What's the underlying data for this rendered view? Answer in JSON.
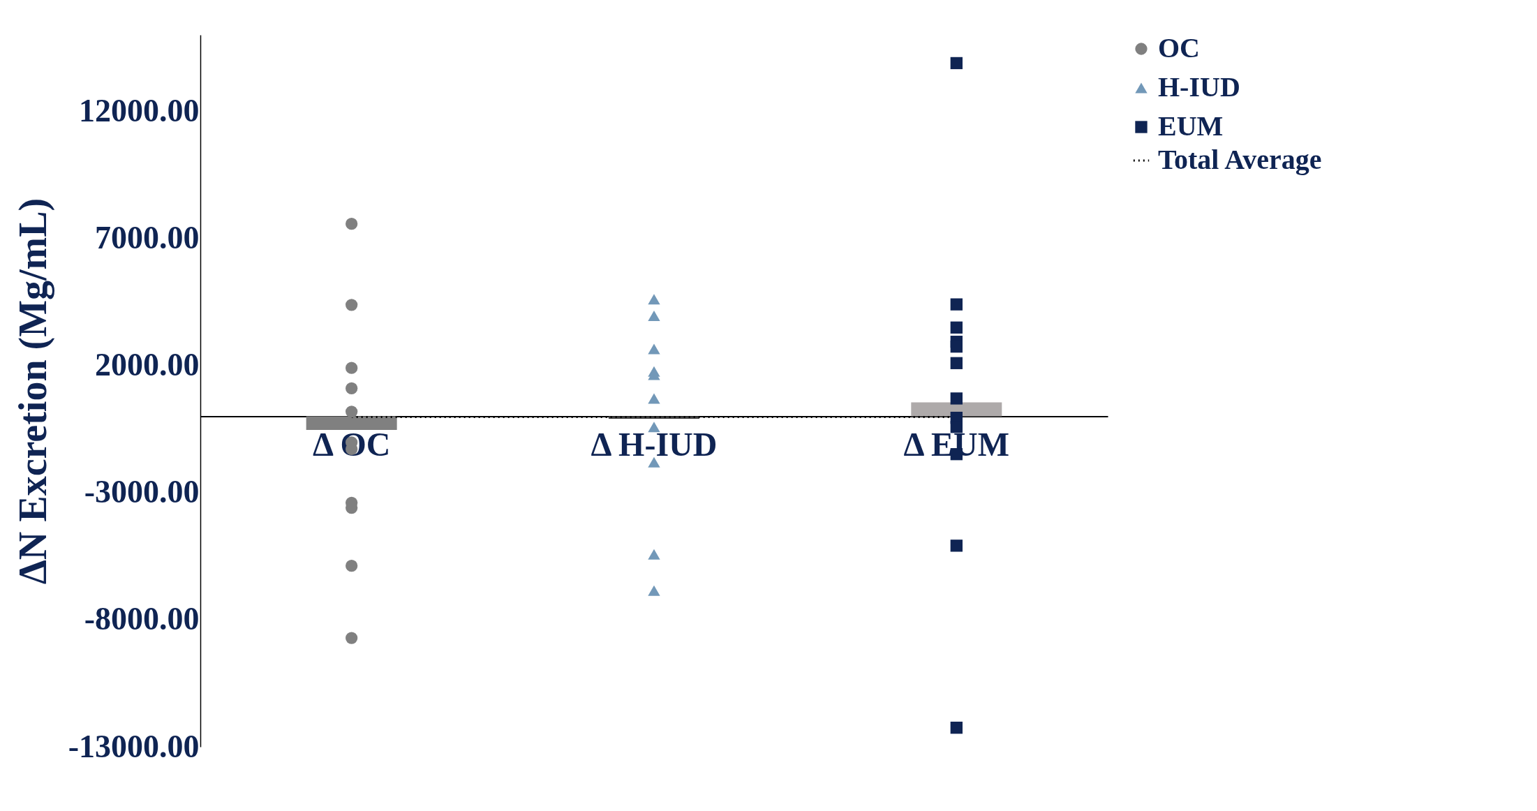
{
  "chart_data": {
    "type": "scatter",
    "ylabel": "ΔN Excretion (Mg/mL)",
    "categories": [
      "Δ OC",
      "Δ H-IUD",
      "Δ EUM"
    ],
    "ylim": [
      -13000,
      15000
    ],
    "yticks": [
      {
        "value": -13000,
        "label": "-13000.00"
      },
      {
        "value": -8000,
        "label": "-8000.00"
      },
      {
        "value": -3000,
        "label": "-3000.00"
      },
      {
        "value": 2000,
        "label": "2000.00"
      },
      {
        "value": 7000,
        "label": "7000.00"
      },
      {
        "value": 12000,
        "label": "12000.00"
      }
    ],
    "legend": "right",
    "grid": false,
    "series": [
      {
        "type": "bar",
        "colors": [
          "#808080",
          "#3f3f3f",
          "#aeaaaa"
        ],
        "values": [
          -540,
          -100,
          550
        ]
      },
      {
        "type": "line",
        "name": "Total Average",
        "color": "#000000",
        "line_style": "dotted",
        "marker": "none",
        "values": [
          -30,
          -30,
          -30
        ]
      },
      {
        "name": "OC",
        "color": "#808080",
        "marker": "circle",
        "x": [
          "Δ OC",
          "Δ OC",
          "Δ OC",
          "Δ OC",
          "Δ OC",
          "Δ OC",
          "Δ OC",
          "Δ OC",
          "Δ OC",
          "Δ OC",
          "Δ OC"
        ],
        "values": [
          7570,
          4380,
          1900,
          1100,
          180,
          -1030,
          -1290,
          -3400,
          -3600,
          -5880,
          -8720
        ]
      },
      {
        "name": "H-IUD",
        "color": "#7298b8",
        "marker": "triangle",
        "x": [
          "Δ H-IUD",
          "Δ H-IUD",
          "Δ H-IUD",
          "Δ H-IUD",
          "Δ H-IUD",
          "Δ H-IUD",
          "Δ H-IUD",
          "Δ H-IUD",
          "Δ H-IUD",
          "Δ H-IUD"
        ],
        "values": [
          4600,
          3950,
          2650,
          1760,
          1630,
          700,
          -420,
          -1810,
          -5430,
          -6860
        ]
      },
      {
        "name": "EUM",
        "color": "#0f2453",
        "marker": "square",
        "x": [
          "Δ EUM",
          "Δ EUM",
          "Δ EUM",
          "Δ EUM",
          "Δ EUM",
          "Δ EUM",
          "Δ EUM",
          "Δ EUM",
          "Δ EUM",
          "Δ EUM",
          "Δ EUM",
          "Δ EUM"
        ],
        "values": [
          13890,
          4400,
          3490,
          2930,
          2740,
          2090,
          700,
          -60,
          -420,
          -1490,
          -5090,
          -12250
        ]
      }
    ]
  }
}
